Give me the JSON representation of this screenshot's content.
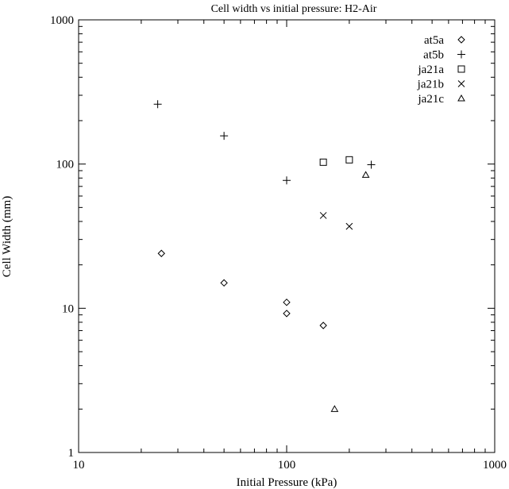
{
  "chart_data": {
    "type": "scatter",
    "title": "Cell width vs initial pressure: H2-Air",
    "xlabel": "Initial Pressure (kPa)",
    "ylabel": "Cell Width (mm)",
    "xscale": "log",
    "yscale": "log",
    "xlim": [
      10,
      1000
    ],
    "ylim": [
      1,
      1000
    ],
    "xticks": [
      10,
      100,
      1000
    ],
    "yticks": [
      1,
      10,
      100,
      1000
    ],
    "xtick_labels": [
      "10",
      "100",
      "1000"
    ],
    "ytick_labels": [
      "1",
      "10",
      "100",
      "1000"
    ],
    "grid": false,
    "legend_position": "top-right",
    "series": [
      {
        "name": "at5a",
        "marker": "diamond",
        "points": [
          [
            25,
            24
          ],
          [
            50,
            15
          ],
          [
            100,
            11
          ],
          [
            100,
            9.2
          ],
          [
            150,
            7.6
          ]
        ]
      },
      {
        "name": "at5b",
        "marker": "plus",
        "points": [
          [
            24,
            260
          ],
          [
            50,
            157
          ],
          [
            100,
            77
          ],
          [
            255,
            99
          ]
        ]
      },
      {
        "name": "ja21a",
        "marker": "square",
        "points": [
          [
            150,
            103
          ],
          [
            200,
            107
          ]
        ]
      },
      {
        "name": "ja21b",
        "marker": "cross",
        "points": [
          [
            150,
            44
          ],
          [
            200,
            37
          ]
        ]
      },
      {
        "name": "ja21c",
        "marker": "triangle",
        "points": [
          [
            240,
            84
          ],
          [
            170,
            2
          ]
        ]
      }
    ]
  }
}
